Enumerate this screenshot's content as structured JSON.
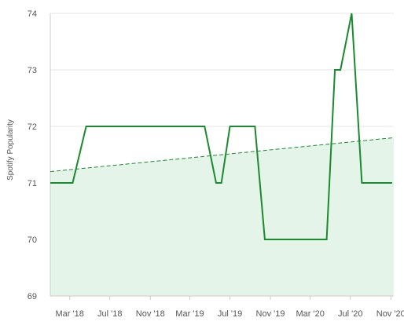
{
  "chart_data": {
    "type": "line",
    "ylabel": "Spotify Popularity",
    "xlabel": "",
    "ylim": [
      69,
      74
    ],
    "yticks": [
      "69",
      "70",
      "71",
      "72",
      "73",
      "74"
    ],
    "x_range": [
      "2018-01-01",
      "2020-11-10"
    ],
    "xticks": [
      {
        "date": "2018-03-01",
        "label": "Mar '18"
      },
      {
        "date": "2018-07-01",
        "label": "Jul '18"
      },
      {
        "date": "2018-11-01",
        "label": "Nov '18"
      },
      {
        "date": "2019-03-01",
        "label": "Mar '19"
      },
      {
        "date": "2019-07-01",
        "label": "Jul '19"
      },
      {
        "date": "2019-11-01",
        "label": "Nov '19"
      },
      {
        "date": "2020-03-01",
        "label": "Mar '20"
      },
      {
        "date": "2020-07-01",
        "label": "Jul '20"
      },
      {
        "date": "2020-11-01",
        "label": "Nov '20"
      }
    ],
    "grid": "horizontal",
    "series": [
      {
        "type": "line",
        "color": "#1a8a2e",
        "points": [
          {
            "x": "2018-01-01",
            "y": 71
          },
          {
            "x": "2018-03-10",
            "y": 71
          },
          {
            "x": "2018-04-20",
            "y": 72
          },
          {
            "x": "2019-04-15",
            "y": 72
          },
          {
            "x": "2019-05-20",
            "y": 71
          },
          {
            "x": "2019-06-05",
            "y": 71
          },
          {
            "x": "2019-07-01",
            "y": 72
          },
          {
            "x": "2019-09-15",
            "y": 72
          },
          {
            "x": "2019-10-15",
            "y": 70
          },
          {
            "x": "2020-04-20",
            "y": 70
          },
          {
            "x": "2020-05-15",
            "y": 73
          },
          {
            "x": "2020-06-01",
            "y": 73
          },
          {
            "x": "2020-07-05",
            "y": 74
          },
          {
            "x": "2020-08-05",
            "y": 71
          },
          {
            "x": "2020-11-05",
            "y": 71
          }
        ]
      },
      {
        "type": "trend",
        "color": "#1a8a2e",
        "dashed": true,
        "fill_color": "#e4f4e8",
        "points": [
          {
            "x": "2018-01-01",
            "y": 71.2
          },
          {
            "x": "2020-11-10",
            "y": 71.8
          }
        ]
      }
    ]
  }
}
